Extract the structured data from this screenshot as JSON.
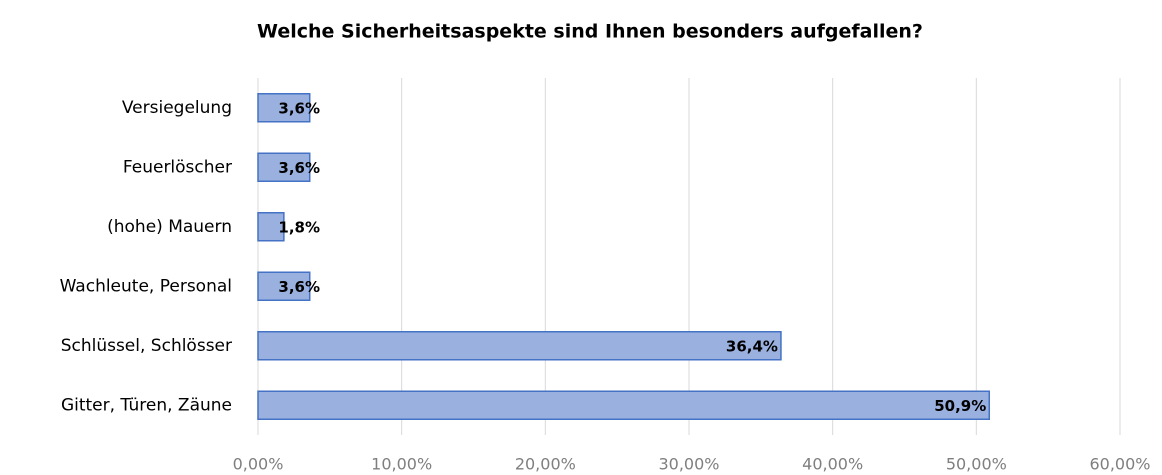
{
  "chart_data": {
    "type": "bar",
    "orientation": "horizontal",
    "title": "Welche Sicherheitsaspekte sind Ihnen besonders aufgefallen?",
    "categories": [
      "Versiegelung",
      "Feuerlöscher",
      "(hohe) Mauern",
      "Wachleute, Personal",
      "Schlüssel, Schlösser",
      "Gitter, Türen, Zäune"
    ],
    "values": [
      3.6,
      3.6,
      1.8,
      3.6,
      36.4,
      50.9
    ],
    "value_labels": [
      "3,6%",
      "3,6%",
      "1,8%",
      "3,6%",
      "36,4%",
      "50,9%"
    ],
    "color": "#9ab1e0",
    "xlim": [
      0,
      60
    ],
    "xticks": [
      {
        "value": 0,
        "label": "0,00%"
      },
      {
        "value": 10,
        "label": "10,00%"
      },
      {
        "value": 20,
        "label": "20,00%"
      },
      {
        "value": 30,
        "label": "30,00%"
      },
      {
        "value": 40,
        "label": "40,00%"
      },
      {
        "value": 50,
        "label": "50,00%"
      },
      {
        "value": 60,
        "label": "60,00%"
      }
    ],
    "grid": true
  }
}
